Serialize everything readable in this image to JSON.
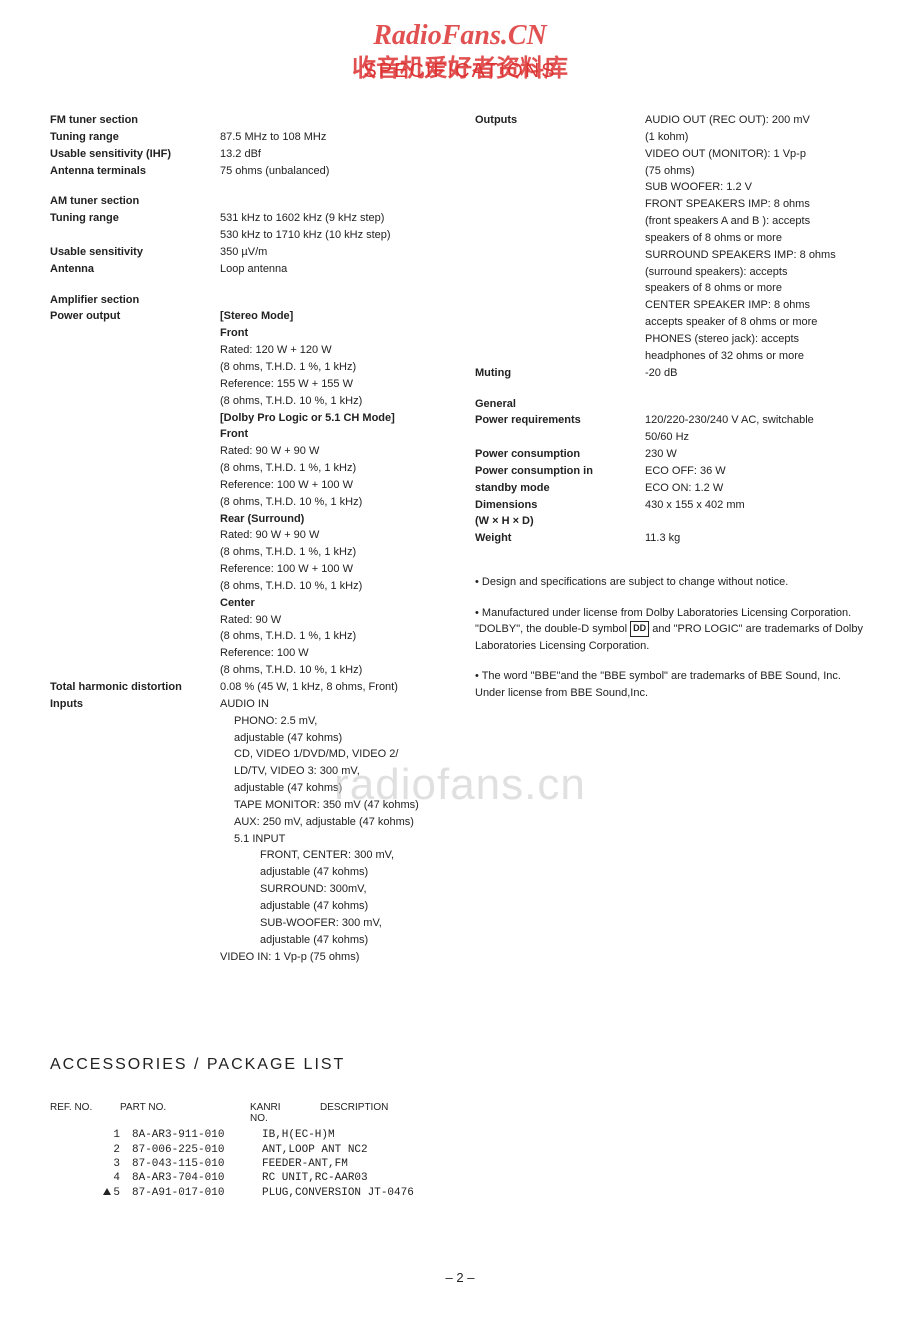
{
  "watermarks": {
    "top1": "RadioFans.CN",
    "top2": "收音机爱好者资料库",
    "spectitle": "SPECIFICATIONS",
    "mid": "radiofans.cn"
  },
  "left_col": [
    {
      "type": "row",
      "label": "FM tuner section",
      "value": ""
    },
    {
      "type": "row",
      "label": "Tuning range",
      "value": "87.5 MHz to 108 MHz"
    },
    {
      "type": "row",
      "label": "Usable sensitivity (IHF)",
      "value": "13.2 dBf"
    },
    {
      "type": "row",
      "label": "Antenna terminals",
      "value": "75 ohms (unbalanced)"
    },
    {
      "type": "gap"
    },
    {
      "type": "row",
      "label": "AM tuner section",
      "value": ""
    },
    {
      "type": "row",
      "label": "Tuning range",
      "value": "531 kHz to 1602 kHz (9 kHz step)"
    },
    {
      "type": "row",
      "label": "",
      "value": "530 kHz to 1710 kHz (10 kHz step)"
    },
    {
      "type": "row",
      "label": "Usable sensitivity",
      "value": "350 µV/m"
    },
    {
      "type": "row",
      "label": "Antenna",
      "value": "Loop antenna"
    },
    {
      "type": "gap"
    },
    {
      "type": "row",
      "label": "Amplifier section",
      "value": ""
    },
    {
      "type": "row",
      "label": "Power output",
      "value": "[Stereo Mode]",
      "vbold": true
    },
    {
      "type": "row",
      "label": "",
      "value": "Front",
      "vbold": true
    },
    {
      "type": "row",
      "label": "",
      "value": "Rated: 120 W + 120 W"
    },
    {
      "type": "row",
      "label": "",
      "value": "(8 ohms, T.H.D. 1 %, 1 kHz)"
    },
    {
      "type": "row",
      "label": "",
      "value": "Reference: 155 W + 155 W"
    },
    {
      "type": "row",
      "label": "",
      "value": "(8 ohms, T.H.D. 10 %, 1 kHz)"
    },
    {
      "type": "row",
      "label": "",
      "value": "[Dolby Pro Logic or 5.1 CH Mode]",
      "vbold": true
    },
    {
      "type": "row",
      "label": "",
      "value": "Front",
      "vbold": true
    },
    {
      "type": "row",
      "label": "",
      "value": "Rated: 90 W + 90 W"
    },
    {
      "type": "row",
      "label": "",
      "value": "(8 ohms, T.H.D. 1 %, 1 kHz)"
    },
    {
      "type": "row",
      "label": "",
      "value": "Reference: 100 W + 100 W"
    },
    {
      "type": "row",
      "label": "",
      "value": "(8 ohms, T.H.D. 10 %, 1 kHz)"
    },
    {
      "type": "row",
      "label": "",
      "value": "Rear (Surround)",
      "vbold": true
    },
    {
      "type": "row",
      "label": "",
      "value": "Rated: 90 W + 90 W"
    },
    {
      "type": "row",
      "label": "",
      "value": "(8 ohms, T.H.D. 1 %, 1 kHz)"
    },
    {
      "type": "row",
      "label": "",
      "value": "Reference: 100 W + 100 W"
    },
    {
      "type": "row",
      "label": "",
      "value": "(8 ohms, T.H.D. 10 %, 1 kHz)"
    },
    {
      "type": "row",
      "label": "",
      "value": "Center",
      "vbold": true
    },
    {
      "type": "row",
      "label": "",
      "value": "Rated: 90 W"
    },
    {
      "type": "row",
      "label": "",
      "value": "(8 ohms, T.H.D. 1 %, 1 kHz)"
    },
    {
      "type": "row",
      "label": "",
      "value": "Reference: 100 W"
    },
    {
      "type": "row",
      "label": "",
      "value": "(8 ohms, T.H.D. 10 %, 1 kHz)"
    },
    {
      "type": "row",
      "label": "Total harmonic distortion",
      "value": "0.08 % (45 W, 1 kHz, 8 ohms, Front)"
    },
    {
      "type": "row",
      "label": "Inputs",
      "value": "AUDIO IN"
    },
    {
      "type": "row",
      "label": "",
      "value": "PHONO: 2.5 mV,",
      "indent": 1
    },
    {
      "type": "row",
      "label": "",
      "value": "adjustable (47 kohms)",
      "indent": 1
    },
    {
      "type": "row",
      "label": "",
      "value": "CD, VIDEO 1/DVD/MD, VIDEO 2/",
      "indent": 1
    },
    {
      "type": "row",
      "label": "",
      "value": "LD/TV, VIDEO 3: 300 mV,",
      "indent": 1
    },
    {
      "type": "row",
      "label": "",
      "value": "adjustable (47 kohms)",
      "indent": 1
    },
    {
      "type": "row",
      "label": "",
      "value": "TAPE MONITOR: 350 mV (47 kohms)",
      "indent": 1
    },
    {
      "type": "row",
      "label": "",
      "value": "AUX: 250 mV, adjustable (47 kohms)",
      "indent": 1
    },
    {
      "type": "row",
      "label": "",
      "value": "5.1 INPUT",
      "indent": 1
    },
    {
      "type": "row",
      "label": "",
      "value": "FRONT, CENTER: 300 mV,",
      "indent": 2
    },
    {
      "type": "row",
      "label": "",
      "value": "adjustable (47 kohms)",
      "indent": 2
    },
    {
      "type": "row",
      "label": "",
      "value": "SURROUND: 300mV,",
      "indent": 2
    },
    {
      "type": "row",
      "label": "",
      "value": "adjustable (47 kohms)",
      "indent": 2
    },
    {
      "type": "row",
      "label": "",
      "value": "SUB-WOOFER: 300 mV,",
      "indent": 2
    },
    {
      "type": "row",
      "label": "",
      "value": "adjustable (47 kohms)",
      "indent": 2
    },
    {
      "type": "row",
      "label": "",
      "value": "VIDEO IN: 1 Vp-p (75 ohms)"
    }
  ],
  "right_col": [
    {
      "type": "row",
      "label": "Outputs",
      "value": "AUDIO OUT (REC OUT): 200 mV"
    },
    {
      "type": "row",
      "label": "",
      "value": "(1 kohm)"
    },
    {
      "type": "row",
      "label": "",
      "value": "VIDEO OUT (MONITOR): 1 Vp-p"
    },
    {
      "type": "row",
      "label": "",
      "value": "(75 ohms)"
    },
    {
      "type": "row",
      "label": "",
      "value": "SUB WOOFER: 1.2 V"
    },
    {
      "type": "row",
      "label": "",
      "value": "FRONT SPEAKERS IMP: 8 ohms"
    },
    {
      "type": "row",
      "label": "",
      "value": "(front speakers A and B ): accepts"
    },
    {
      "type": "row",
      "label": "",
      "value": "speakers of 8 ohms or more"
    },
    {
      "type": "row",
      "label": "",
      "value": "SURROUND SPEAKERS IMP: 8 ohms"
    },
    {
      "type": "row",
      "label": "",
      "value": "(surround speakers): accepts"
    },
    {
      "type": "row",
      "label": "",
      "value": "speakers of 8 ohms or more"
    },
    {
      "type": "row",
      "label": "",
      "value": "CENTER SPEAKER IMP: 8 ohms"
    },
    {
      "type": "row",
      "label": "",
      "value": "accepts speaker of 8 ohms or more"
    },
    {
      "type": "row",
      "label": "",
      "value": "PHONES (stereo jack): accepts"
    },
    {
      "type": "row",
      "label": "",
      "value": "headphones of 32 ohms or more"
    },
    {
      "type": "row",
      "label": "Muting",
      "value": "-20 dB"
    },
    {
      "type": "gap"
    },
    {
      "type": "row",
      "label": "General",
      "value": ""
    },
    {
      "type": "row",
      "label": "Power requirements",
      "value": "120/220-230/240 V AC, switchable"
    },
    {
      "type": "row",
      "label": "",
      "value": "50/60 Hz"
    },
    {
      "type": "row",
      "label": "Power consumption",
      "value": "230 W"
    },
    {
      "type": "row",
      "label": "Power consumption in",
      "value": "ECO OFF: 36 W"
    },
    {
      "type": "row",
      "label": " standby mode",
      "value": "ECO ON: 1.2 W"
    },
    {
      "type": "row",
      "label": "Dimensions",
      "value": "430 x 155 x 402 mm"
    },
    {
      "type": "row",
      "label": "(W × H × D)",
      "value": ""
    },
    {
      "type": "row",
      "label": "Weight",
      "value": "11.3 kg"
    }
  ],
  "notes": {
    "n1": "• Design and specifications are subject to change without notice.",
    "n2a": "• Manufactured under license from Dolby Laboratories Licensing Corporation.",
    "n2b_pre": "\"DOLBY\", the double-D symbol ",
    "n2b_sym": "DD",
    "n2b_post": " and \"PRO LOGIC\" are trademarks of Dolby Laboratories Licensing Corporation.",
    "n3a": "• The word \"BBE\"and the \"BBE symbol\" are trademarks of BBE Sound, Inc.",
    "n3b": "Under license from BBE Sound,Inc."
  },
  "accessories": {
    "title": "ACCESSORIES / PACKAGE LIST",
    "head": {
      "c1": "REF. NO.",
      "c2": "PART NO.",
      "c3": "KANRI",
      "c3b": "NO.",
      "c4": "DESCRIPTION"
    },
    "rows": [
      {
        "n": "1",
        "pn": "8A-AR3-911-010",
        "desc": "IB,H(EC-H)M"
      },
      {
        "n": "2",
        "pn": "87-006-225-010",
        "desc": "ANT,LOOP ANT NC2"
      },
      {
        "n": "3",
        "pn": "87-043-115-010",
        "desc": "FEEDER-ANT,FM"
      },
      {
        "n": "4",
        "pn": "8A-AR3-704-010",
        "desc": "RC UNIT,RC-AAR03"
      },
      {
        "n": "5",
        "pn": "87-A91-017-010",
        "desc": "PLUG,CONVERSION JT-0476",
        "tri": true
      }
    ]
  },
  "pagenum": "– 2 –"
}
